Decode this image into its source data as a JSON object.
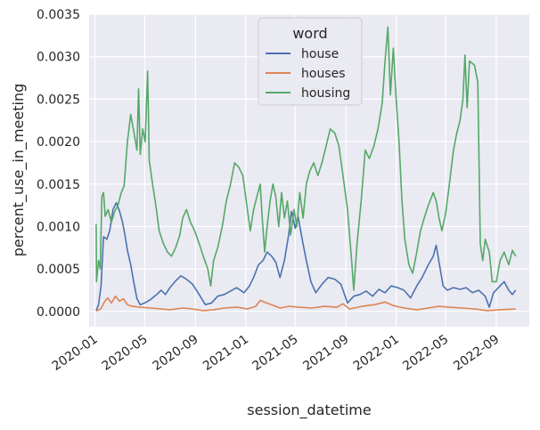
{
  "chart_data": {
    "type": "line",
    "title": "",
    "xlabel": "session_datetime",
    "ylabel": "percent_use_in_meeting",
    "ylim": [
      -0.00018,
      0.0035
    ],
    "xlim": [
      "2019-12-18",
      "2022-11-20"
    ],
    "yticks": [
      "0.0000",
      "0.0005",
      "0.0010",
      "0.0015",
      "0.0020",
      "0.0025",
      "0.0030",
      "0.0035"
    ],
    "xticks": [
      "2020-01",
      "2020-05",
      "2020-09",
      "2021-01",
      "2021-05",
      "2021-09",
      "2022-01",
      "2022-05",
      "2022-09"
    ],
    "grid": true,
    "background": "#eaeaf2",
    "legend": {
      "title": "word",
      "placement": "top-center"
    },
    "series": [
      {
        "name": "house",
        "color": "#4c72b0",
        "points": [
          [
            "2020-01-04",
            1e-05
          ],
          [
            "2020-01-10",
            8e-05
          ],
          [
            "2020-01-16",
            0.0003
          ],
          [
            "2020-01-22",
            0.00088
          ],
          [
            "2020-01-30",
            0.00085
          ],
          [
            "2020-02-06",
            0.00095
          ],
          [
            "2020-02-14",
            0.0012
          ],
          [
            "2020-02-22",
            0.00128
          ],
          [
            "2020-03-01",
            0.00118
          ],
          [
            "2020-03-08",
            0.00105
          ],
          [
            "2020-03-14",
            0.0009
          ],
          [
            "2020-03-20",
            0.00072
          ],
          [
            "2020-03-28",
            0.00055
          ],
          [
            "2020-04-04",
            0.00035
          ],
          [
            "2020-04-12",
            0.00015
          ],
          [
            "2020-04-20",
            8e-05
          ],
          [
            "2020-05-01",
            0.0001
          ],
          [
            "2020-05-15",
            0.00014
          ],
          [
            "2020-05-30",
            0.0002
          ],
          [
            "2020-06-10",
            0.00025
          ],
          [
            "2020-06-20",
            0.0002
          ],
          [
            "2020-07-01",
            0.00028
          ],
          [
            "2020-07-15",
            0.00036
          ],
          [
            "2020-07-28",
            0.00042
          ],
          [
            "2020-08-10",
            0.00038
          ],
          [
            "2020-08-25",
            0.00032
          ],
          [
            "2020-09-10",
            0.0002
          ],
          [
            "2020-09-25",
            8e-05
          ],
          [
            "2020-10-10",
            0.0001
          ],
          [
            "2020-10-25",
            0.00018
          ],
          [
            "2020-11-10",
            0.0002
          ],
          [
            "2020-11-25",
            0.00024
          ],
          [
            "2020-12-10",
            0.00028
          ],
          [
            "2020-12-28",
            0.00022
          ],
          [
            "2021-01-10",
            0.0003
          ],
          [
            "2021-01-20",
            0.0004
          ],
          [
            "2021-02-01",
            0.00055
          ],
          [
            "2021-02-12",
            0.0006
          ],
          [
            "2021-02-22",
            0.0007
          ],
          [
            "2021-03-05",
            0.00065
          ],
          [
            "2021-03-15",
            0.00058
          ],
          [
            "2021-03-25",
            0.0004
          ],
          [
            "2021-04-05",
            0.0006
          ],
          [
            "2021-04-15",
            0.0009
          ],
          [
            "2021-04-22",
            0.00118
          ],
          [
            "2021-05-01",
            0.00098
          ],
          [
            "2021-05-08",
            0.00112
          ],
          [
            "2021-05-18",
            0.00085
          ],
          [
            "2021-05-28",
            0.0006
          ],
          [
            "2021-06-08",
            0.00035
          ],
          [
            "2021-06-20",
            0.00022
          ],
          [
            "2021-07-05",
            0.00032
          ],
          [
            "2021-07-20",
            0.0004
          ],
          [
            "2021-08-05",
            0.00038
          ],
          [
            "2021-08-20",
            0.00032
          ],
          [
            "2021-09-05",
            0.0001
          ],
          [
            "2021-09-20",
            0.00018
          ],
          [
            "2021-10-05",
            0.0002
          ],
          [
            "2021-10-20",
            0.00024
          ],
          [
            "2021-11-05",
            0.00018
          ],
          [
            "2021-11-20",
            0.00026
          ],
          [
            "2021-12-05",
            0.00022
          ],
          [
            "2021-12-20",
            0.0003
          ],
          [
            "2022-01-05",
            0.00028
          ],
          [
            "2022-01-20",
            0.00025
          ],
          [
            "2022-02-05",
            0.00016
          ],
          [
            "2022-02-20",
            0.0003
          ],
          [
            "2022-03-05",
            0.0004
          ],
          [
            "2022-03-20",
            0.00055
          ],
          [
            "2022-04-01",
            0.00065
          ],
          [
            "2022-04-08",
            0.00078
          ],
          [
            "2022-04-15",
            0.00058
          ],
          [
            "2022-04-25",
            0.0003
          ],
          [
            "2022-05-05",
            0.00025
          ],
          [
            "2022-05-20",
            0.00028
          ],
          [
            "2022-06-05",
            0.00026
          ],
          [
            "2022-06-20",
            0.00028
          ],
          [
            "2022-07-05",
            0.00022
          ],
          [
            "2022-07-20",
            0.00025
          ],
          [
            "2022-08-05",
            0.00018
          ],
          [
            "2022-08-15",
            5e-05
          ],
          [
            "2022-08-25",
            0.00022
          ],
          [
            "2022-09-10",
            0.0003
          ],
          [
            "2022-09-20",
            0.00035
          ],
          [
            "2022-10-01",
            0.00025
          ],
          [
            "2022-10-10",
            0.0002
          ],
          [
            "2022-10-18",
            0.00025
          ]
        ]
      },
      {
        "name": "houses",
        "color": "#dd8452",
        "points": [
          [
            "2020-01-04",
            5e-06
          ],
          [
            "2020-01-15",
            3e-05
          ],
          [
            "2020-01-25",
            0.00012
          ],
          [
            "2020-02-01",
            0.00016
          ],
          [
            "2020-02-10",
            0.0001
          ],
          [
            "2020-02-20",
            0.00018
          ],
          [
            "2020-03-01",
            0.00012
          ],
          [
            "2020-03-10",
            0.00015
          ],
          [
            "2020-03-20",
            8e-05
          ],
          [
            "2020-04-01",
            6e-05
          ],
          [
            "2020-04-20",
            5e-05
          ],
          [
            "2020-05-15",
            4e-05
          ],
          [
            "2020-06-10",
            3e-05
          ],
          [
            "2020-07-01",
            2e-05
          ],
          [
            "2020-08-01",
            4e-05
          ],
          [
            "2020-08-25",
            3e-05
          ],
          [
            "2020-09-20",
            1e-05
          ],
          [
            "2020-10-15",
            2e-05
          ],
          [
            "2020-11-10",
            4e-05
          ],
          [
            "2020-12-10",
            5e-05
          ],
          [
            "2021-01-05",
            3e-05
          ],
          [
            "2021-01-25",
            6e-05
          ],
          [
            "2021-02-05",
            0.00013
          ],
          [
            "2021-02-20",
            0.0001
          ],
          [
            "2021-03-10",
            7e-05
          ],
          [
            "2021-03-25",
            4e-05
          ],
          [
            "2021-04-15",
            6e-05
          ],
          [
            "2021-05-10",
            5e-05
          ],
          [
            "2021-06-10",
            4e-05
          ],
          [
            "2021-07-10",
            6e-05
          ],
          [
            "2021-08-10",
            5e-05
          ],
          [
            "2021-08-25",
            9e-05
          ],
          [
            "2021-09-10",
            3e-05
          ],
          [
            "2021-10-10",
            6e-05
          ],
          [
            "2021-11-10",
            8e-05
          ],
          [
            "2021-12-05",
            0.00011
          ],
          [
            "2021-12-25",
            7e-05
          ],
          [
            "2022-01-20",
            4e-05
          ],
          [
            "2022-02-20",
            2e-05
          ],
          [
            "2022-03-20",
            4e-05
          ],
          [
            "2022-04-15",
            6e-05
          ],
          [
            "2022-05-10",
            5e-05
          ],
          [
            "2022-06-10",
            4e-05
          ],
          [
            "2022-07-10",
            3e-05
          ],
          [
            "2022-08-10",
            1e-05
          ],
          [
            "2022-09-10",
            2e-05
          ],
          [
            "2022-10-18",
            3e-05
          ]
        ]
      },
      {
        "name": "housing",
        "color": "#55a868",
        "points": [
          [
            "2020-01-04",
            0.00103
          ],
          [
            "2020-01-05",
            0.00035
          ],
          [
            "2020-01-10",
            0.0006
          ],
          [
            "2020-01-14",
            0.0005
          ],
          [
            "2020-01-18",
            0.00135
          ],
          [
            "2020-01-22",
            0.0014
          ],
          [
            "2020-01-26",
            0.00112
          ],
          [
            "2020-02-02",
            0.0012
          ],
          [
            "2020-02-10",
            0.00105
          ],
          [
            "2020-02-18",
            0.00118
          ],
          [
            "2020-02-26",
            0.00125
          ],
          [
            "2020-03-05",
            0.0014
          ],
          [
            "2020-03-12",
            0.00148
          ],
          [
            "2020-03-20",
            0.002
          ],
          [
            "2020-03-28",
            0.00232
          ],
          [
            "2020-04-05",
            0.0021
          ],
          [
            "2020-04-12",
            0.0019
          ],
          [
            "2020-04-16",
            0.00262
          ],
          [
            "2020-04-20",
            0.00185
          ],
          [
            "2020-04-26",
            0.00215
          ],
          [
            "2020-05-02",
            0.002
          ],
          [
            "2020-05-08",
            0.00283
          ],
          [
            "2020-05-12",
            0.00178
          ],
          [
            "2020-05-20",
            0.0015
          ],
          [
            "2020-05-28",
            0.00125
          ],
          [
            "2020-06-05",
            0.00095
          ],
          [
            "2020-06-15",
            0.0008
          ],
          [
            "2020-06-25",
            0.0007
          ],
          [
            "2020-07-05",
            0.00065
          ],
          [
            "2020-07-15",
            0.00075
          ],
          [
            "2020-07-25",
            0.0009
          ],
          [
            "2020-08-01",
            0.0011
          ],
          [
            "2020-08-10",
            0.0012
          ],
          [
            "2020-08-20",
            0.00105
          ],
          [
            "2020-08-30",
            0.00095
          ],
          [
            "2020-09-10",
            0.0008
          ],
          [
            "2020-09-20",
            0.00065
          ],
          [
            "2020-10-01",
            0.0005
          ],
          [
            "2020-10-08",
            0.0003
          ],
          [
            "2020-10-15",
            0.0006
          ],
          [
            "2020-10-25",
            0.00075
          ],
          [
            "2020-11-05",
            0.001
          ],
          [
            "2020-11-15",
            0.0013
          ],
          [
            "2020-11-25",
            0.0015
          ],
          [
            "2020-12-05",
            0.00175
          ],
          [
            "2020-12-15",
            0.0017
          ],
          [
            "2020-12-25",
            0.0016
          ],
          [
            "2021-01-05",
            0.0012
          ],
          [
            "2021-01-12",
            0.00095
          ],
          [
            "2021-01-20",
            0.0012
          ],
          [
            "2021-01-28",
            0.00135
          ],
          [
            "2021-02-05",
            0.0015
          ],
          [
            "2021-02-10",
            0.0011
          ],
          [
            "2021-02-16",
            0.0007
          ],
          [
            "2021-02-22",
            0.001
          ],
          [
            "2021-03-01",
            0.0013
          ],
          [
            "2021-03-08",
            0.0015
          ],
          [
            "2021-03-15",
            0.00135
          ],
          [
            "2021-03-22",
            0.001
          ],
          [
            "2021-03-29",
            0.0014
          ],
          [
            "2021-04-05",
            0.0011
          ],
          [
            "2021-04-12",
            0.0013
          ],
          [
            "2021-04-20",
            0.0009
          ],
          [
            "2021-04-28",
            0.0012
          ],
          [
            "2021-05-05",
            0.001
          ],
          [
            "2021-05-12",
            0.0014
          ],
          [
            "2021-05-20",
            0.0011
          ],
          [
            "2021-05-28",
            0.0015
          ],
          [
            "2021-06-05",
            0.00165
          ],
          [
            "2021-06-15",
            0.00175
          ],
          [
            "2021-06-25",
            0.0016
          ],
          [
            "2021-07-05",
            0.00175
          ],
          [
            "2021-07-15",
            0.00195
          ],
          [
            "2021-07-25",
            0.00215
          ],
          [
            "2021-08-05",
            0.0021
          ],
          [
            "2021-08-15",
            0.00195
          ],
          [
            "2021-08-25",
            0.0016
          ],
          [
            "2021-09-05",
            0.0012
          ],
          [
            "2021-09-15",
            0.0006
          ],
          [
            "2021-09-20",
            0.00025
          ],
          [
            "2021-09-28",
            0.0008
          ],
          [
            "2021-10-08",
            0.0013
          ],
          [
            "2021-10-18",
            0.0019
          ],
          [
            "2021-10-28",
            0.0018
          ],
          [
            "2021-11-08",
            0.00195
          ],
          [
            "2021-11-18",
            0.00215
          ],
          [
            "2021-11-28",
            0.00245
          ],
          [
            "2021-12-05",
            0.00295
          ],
          [
            "2021-12-12",
            0.00335
          ],
          [
            "2021-12-18",
            0.00255
          ],
          [
            "2021-12-25",
            0.0031
          ],
          [
            "2022-01-01",
            0.0025
          ],
          [
            "2022-01-08",
            0.002
          ],
          [
            "2022-01-15",
            0.0013
          ],
          [
            "2022-01-22",
            0.00085
          ],
          [
            "2022-02-01",
            0.00055
          ],
          [
            "2022-02-10",
            0.00045
          ],
          [
            "2022-02-20",
            0.0007
          ],
          [
            "2022-03-01",
            0.00095
          ],
          [
            "2022-03-10",
            0.0011
          ],
          [
            "2022-03-20",
            0.00125
          ],
          [
            "2022-04-01",
            0.0014
          ],
          [
            "2022-04-08",
            0.0013
          ],
          [
            "2022-04-15",
            0.0011
          ],
          [
            "2022-04-22",
            0.00095
          ],
          [
            "2022-05-01",
            0.00115
          ],
          [
            "2022-05-10",
            0.0015
          ],
          [
            "2022-05-20",
            0.0019
          ],
          [
            "2022-05-28",
            0.0021
          ],
          [
            "2022-06-05",
            0.00225
          ],
          [
            "2022-06-12",
            0.0025
          ],
          [
            "2022-06-17",
            0.00302
          ],
          [
            "2022-06-22",
            0.0024
          ],
          [
            "2022-06-28",
            0.00295
          ],
          [
            "2022-07-10",
            0.0029
          ],
          [
            "2022-07-18",
            0.0027
          ],
          [
            "2022-07-24",
            0.0008
          ],
          [
            "2022-07-30",
            0.0006
          ],
          [
            "2022-08-05",
            0.00085
          ],
          [
            "2022-08-15",
            0.0007
          ],
          [
            "2022-08-22",
            0.00035
          ],
          [
            "2022-09-01",
            0.00035
          ],
          [
            "2022-09-10",
            0.0006
          ],
          [
            "2022-09-20",
            0.0007
          ],
          [
            "2022-10-01",
            0.00055
          ],
          [
            "2022-10-10",
            0.00072
          ],
          [
            "2022-10-18",
            0.00065
          ]
        ]
      }
    ]
  }
}
